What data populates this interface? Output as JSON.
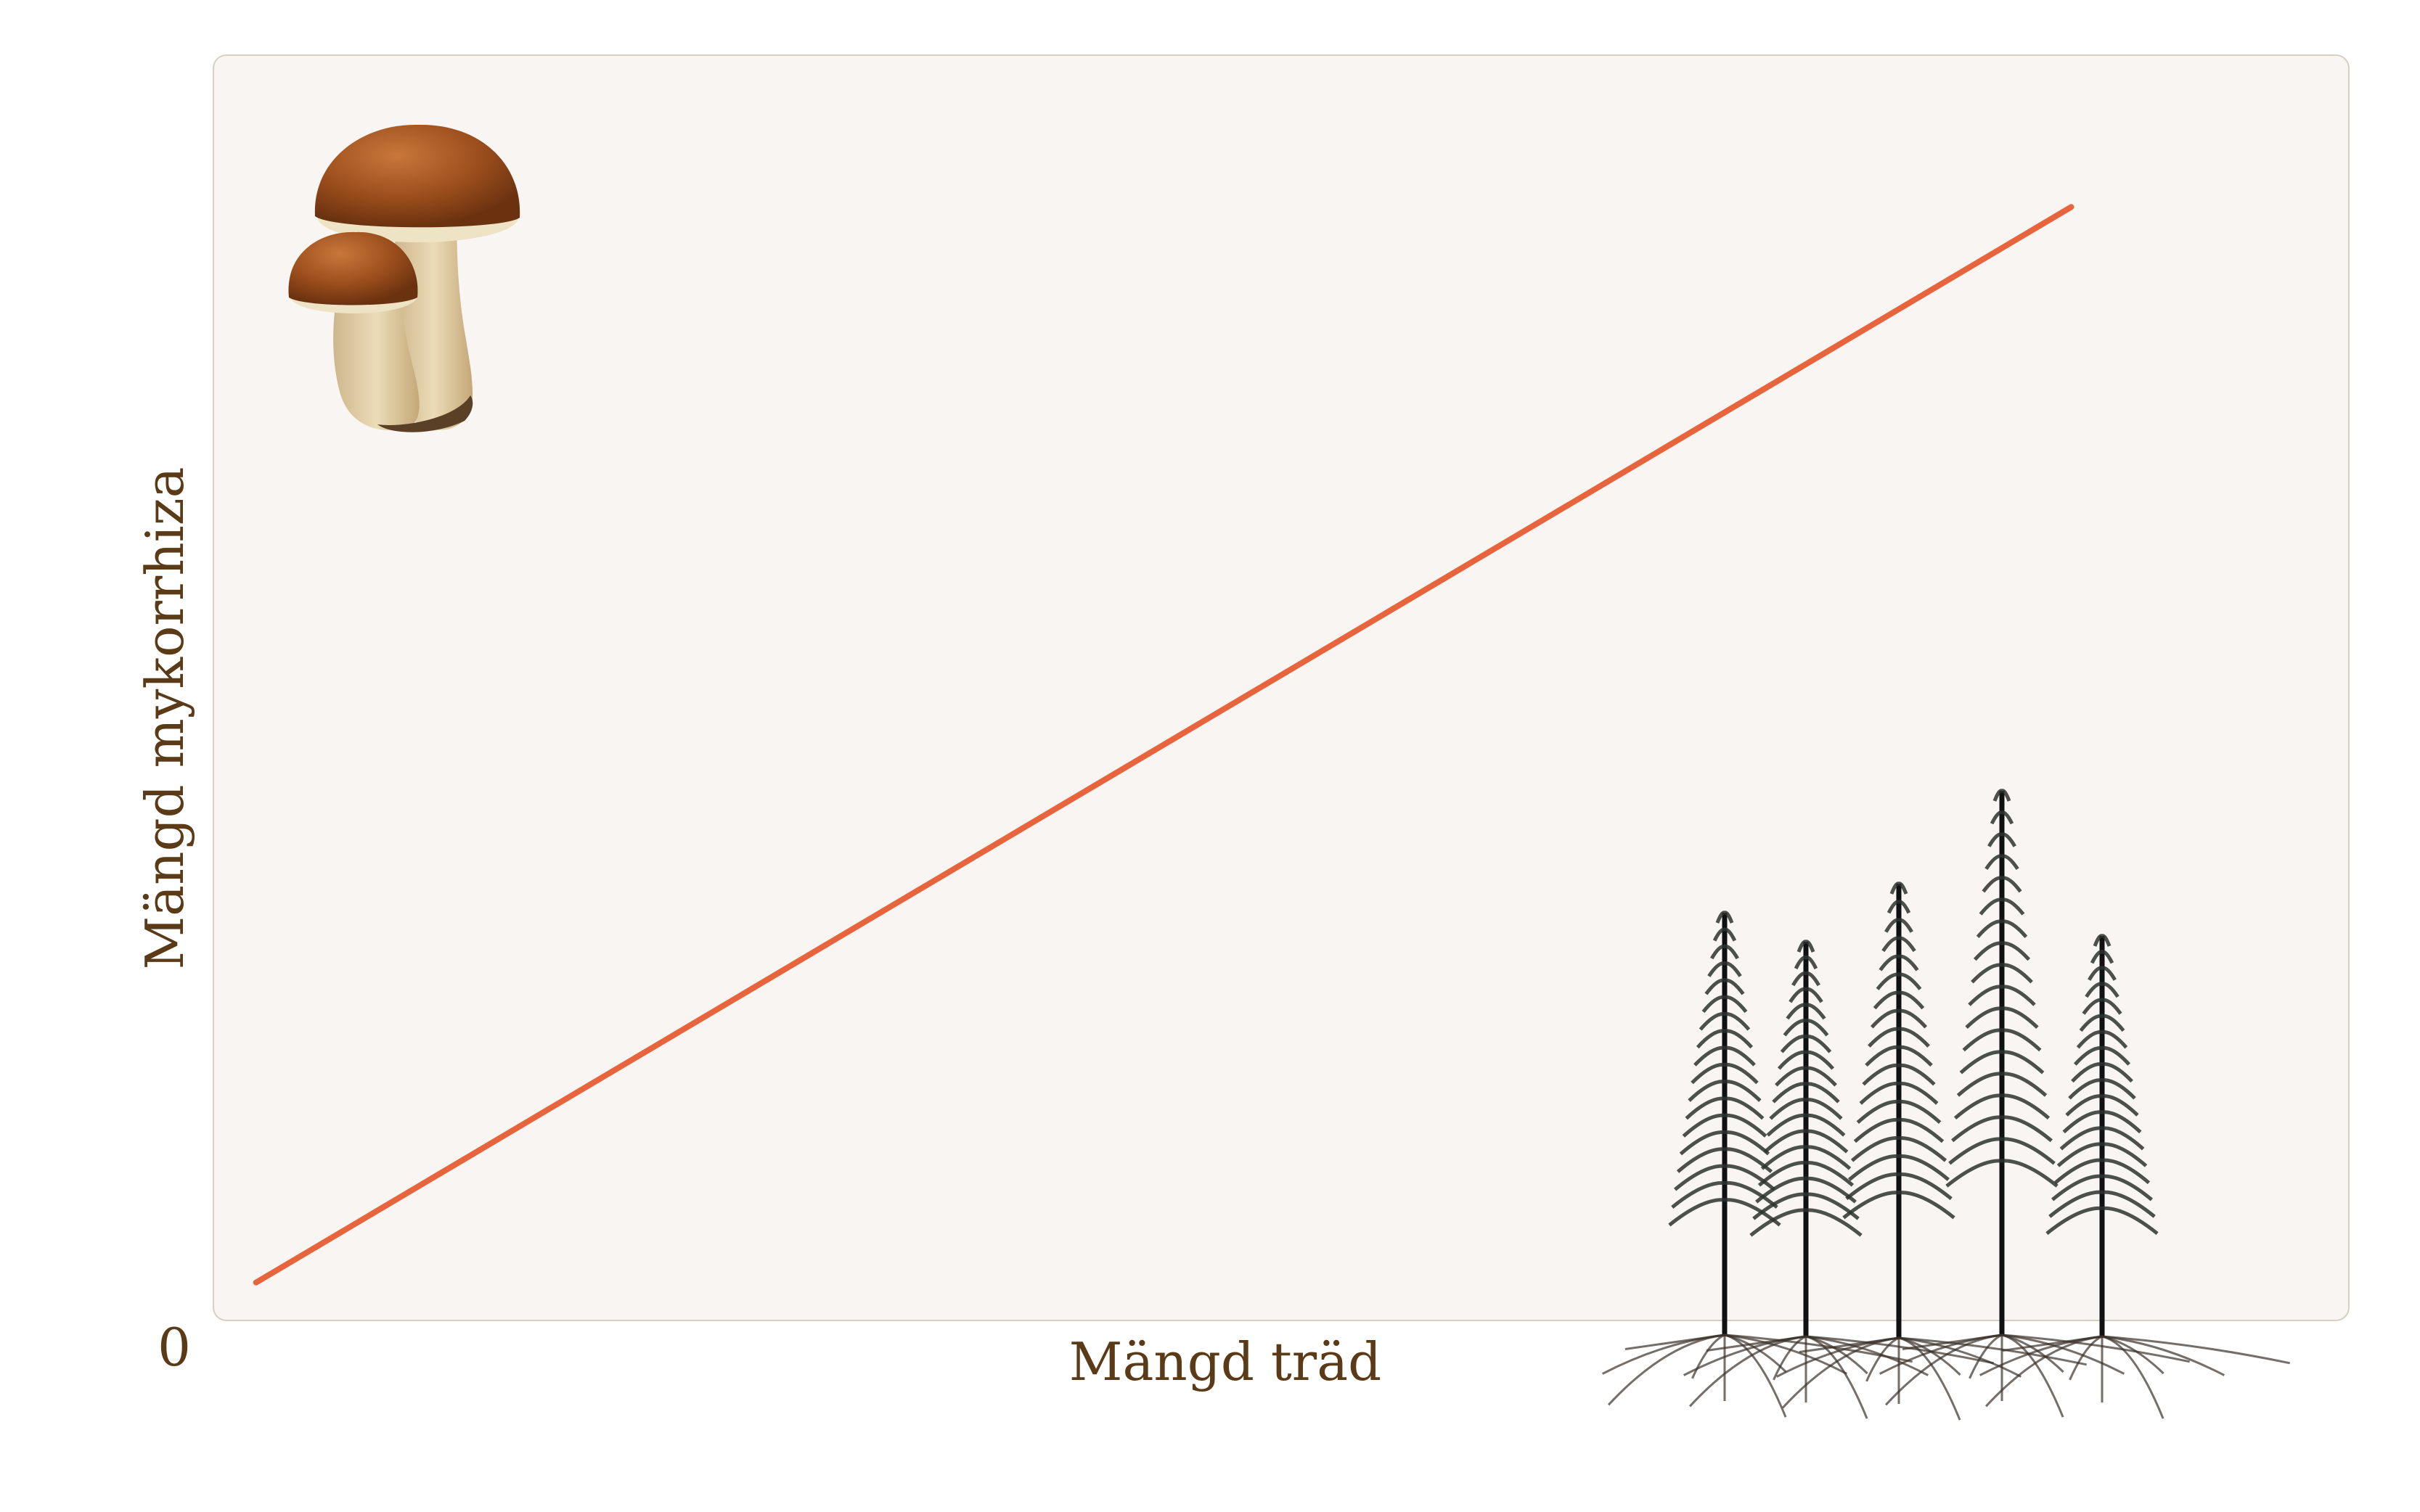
{
  "chart_data": {
    "type": "line",
    "xlabel": "Mängd träd",
    "ylabel": "Mängd mykorrhiza",
    "origin_label": "0",
    "xlim": [
      0,
      1
    ],
    "ylim": [
      0,
      1
    ],
    "grid": false,
    "series": [
      {
        "x": [
          0.02,
          0.87
        ],
        "y": [
          0.03,
          0.88
        ]
      }
    ],
    "icons": [
      "mushroom-illustration",
      "spruce-trees-illustration"
    ]
  },
  "colors": {
    "panel_background": "#f8f5f2",
    "panel_border": "#d8cfc2",
    "line": "#e8643c",
    "text": "#5a3a17",
    "mushroom_cap": "#a0521f",
    "mushroom_stem": "#e2cfa8",
    "tree": "#2e332e",
    "roots": "#3b302a"
  }
}
